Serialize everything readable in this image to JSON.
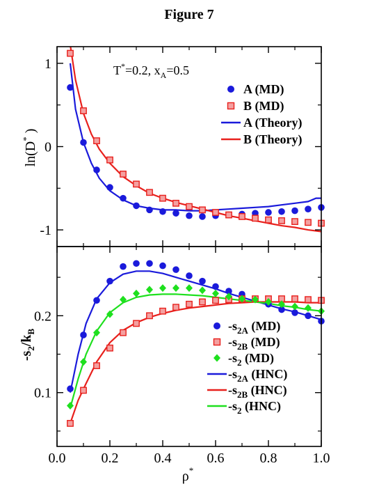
{
  "figure_title": "Figure 7",
  "x_axis": {
    "label": "ρ",
    "label_sup": "*",
    "ticks": [
      0.0,
      0.2,
      0.4,
      0.6,
      0.8,
      1.0
    ],
    "tick_labels": [
      "0.0",
      "0.2",
      "0.4",
      "0.6",
      "0.8",
      "1.0"
    ],
    "xlim": [
      0.0,
      1.0
    ]
  },
  "colors": {
    "blue": "#1a1adb",
    "red": "#e8201c",
    "green": "#1ee01e"
  },
  "chart_data": [
    {
      "type": "scatter+line",
      "panel": "top",
      "annotation": {
        "t_label": "T",
        "t_sup": "*",
        "t_value": "=0.2, x",
        "x_sub": "A",
        "x_value": "=0.5"
      },
      "ylabel": {
        "base": "ln(D",
        "sup": "*",
        "close": " )"
      },
      "ylim": [
        -1.2,
        1.2
      ],
      "yticks": [
        -1,
        0,
        1
      ],
      "ytick_labels": [
        "-1",
        "0",
        "1"
      ],
      "legend_position": "top-right",
      "series": [
        {
          "name": "A (MD)",
          "kind": "points",
          "marker": "circle",
          "color": "#1a1adb",
          "x": [
            0.05,
            0.1,
            0.15,
            0.2,
            0.25,
            0.3,
            0.35,
            0.4,
            0.45,
            0.5,
            0.55,
            0.6,
            0.65,
            0.7,
            0.75,
            0.8,
            0.85,
            0.9,
            0.95,
            1.0
          ],
          "y": [
            0.71,
            0.05,
            -0.28,
            -0.49,
            -0.62,
            -0.71,
            -0.76,
            -0.78,
            -0.8,
            -0.83,
            -0.84,
            -0.83,
            -0.82,
            -0.81,
            -0.8,
            -0.79,
            -0.78,
            -0.77,
            -0.75,
            -0.73
          ]
        },
        {
          "name": "B (MD)",
          "kind": "points",
          "marker": "square",
          "color": "#e8201c",
          "x": [
            0.05,
            0.1,
            0.15,
            0.2,
            0.25,
            0.3,
            0.35,
            0.4,
            0.45,
            0.5,
            0.55,
            0.6,
            0.65,
            0.7,
            0.75,
            0.8,
            0.85,
            0.9,
            0.95,
            1.0
          ],
          "y": [
            1.12,
            0.43,
            0.07,
            -0.16,
            -0.33,
            -0.45,
            -0.55,
            -0.62,
            -0.68,
            -0.72,
            -0.76,
            -0.79,
            -0.82,
            -0.84,
            -0.86,
            -0.88,
            -0.89,
            -0.9,
            -0.91,
            -0.92
          ]
        },
        {
          "name": "A (Theory)",
          "kind": "line",
          "color": "#1a1adb",
          "x": [
            0.05,
            0.07,
            0.1,
            0.13,
            0.16,
            0.2,
            0.25,
            0.3,
            0.35,
            0.4,
            0.45,
            0.5,
            0.55,
            0.6,
            0.65,
            0.7,
            0.75,
            0.8,
            0.85,
            0.9,
            0.95,
            0.98,
            1.0
          ],
          "y": [
            1.0,
            0.45,
            0.05,
            -0.2,
            -0.38,
            -0.53,
            -0.64,
            -0.71,
            -0.74,
            -0.76,
            -0.76,
            -0.77,
            -0.77,
            -0.76,
            -0.75,
            -0.74,
            -0.73,
            -0.72,
            -0.7,
            -0.68,
            -0.66,
            -0.62,
            -0.62
          ]
        },
        {
          "name": "B (Theory)",
          "kind": "line",
          "color": "#e8201c",
          "x": [
            0.05,
            0.07,
            0.1,
            0.13,
            0.16,
            0.2,
            0.25,
            0.3,
            0.35,
            0.4,
            0.45,
            0.5,
            0.55,
            0.6,
            0.65,
            0.7,
            0.75,
            0.8,
            0.85,
            0.9,
            0.95,
            1.0
          ],
          "y": [
            1.22,
            0.8,
            0.4,
            0.15,
            -0.03,
            -0.2,
            -0.36,
            -0.47,
            -0.56,
            -0.62,
            -0.67,
            -0.71,
            -0.75,
            -0.79,
            -0.83,
            -0.86,
            -0.89,
            -0.92,
            -0.95,
            -0.97,
            -1.0,
            -1.02
          ]
        }
      ]
    },
    {
      "type": "scatter+line",
      "panel": "bottom",
      "ylabel": {
        "base": "-s",
        "sub": "2",
        "mid": "/k",
        "sub2": "B"
      },
      "ylim": [
        0.03,
        0.29
      ],
      "yticks": [
        0.1,
        0.2
      ],
      "ytick_labels": [
        "0.1",
        "0.2"
      ],
      "legend_position": "bottom-right",
      "series": [
        {
          "name": "-s2A (MD)",
          "label_parts": [
            "-s",
            "2A",
            " (MD)"
          ],
          "kind": "points",
          "marker": "circle",
          "color": "#1a1adb",
          "x": [
            0.05,
            0.1,
            0.15,
            0.2,
            0.25,
            0.3,
            0.35,
            0.4,
            0.45,
            0.5,
            0.55,
            0.6,
            0.65,
            0.7,
            0.75,
            0.8,
            0.85,
            0.9,
            0.95,
            1.0
          ],
          "y": [
            0.105,
            0.175,
            0.22,
            0.245,
            0.264,
            0.268,
            0.268,
            0.265,
            0.26,
            0.252,
            0.245,
            0.238,
            0.232,
            0.228,
            0.222,
            0.215,
            0.208,
            0.204,
            0.2,
            0.193
          ]
        },
        {
          "name": "-s2B (MD)",
          "label_parts": [
            "-s",
            "2B",
            " (MD)"
          ],
          "kind": "points",
          "marker": "square",
          "color": "#e8201c",
          "x": [
            0.05,
            0.1,
            0.15,
            0.2,
            0.25,
            0.3,
            0.35,
            0.4,
            0.45,
            0.5,
            0.55,
            0.6,
            0.65,
            0.7,
            0.75,
            0.8,
            0.85,
            0.9,
            0.95,
            1.0
          ],
          "y": [
            0.06,
            0.103,
            0.135,
            0.158,
            0.178,
            0.19,
            0.2,
            0.206,
            0.211,
            0.215,
            0.218,
            0.22,
            0.221,
            0.222,
            0.222,
            0.222,
            0.222,
            0.222,
            0.221,
            0.22
          ]
        },
        {
          "name": "-s2 (MD)",
          "label_parts": [
            "-s",
            "2",
            " (MD)"
          ],
          "kind": "points",
          "marker": "diamond",
          "color": "#1ee01e",
          "x": [
            0.05,
            0.1,
            0.15,
            0.2,
            0.25,
            0.3,
            0.35,
            0.4,
            0.45,
            0.5,
            0.55,
            0.6,
            0.65,
            0.7,
            0.75,
            0.8,
            0.85,
            0.9,
            0.95,
            1.0
          ],
          "y": [
            0.083,
            0.14,
            0.178,
            0.202,
            0.221,
            0.229,
            0.234,
            0.236,
            0.236,
            0.236,
            0.233,
            0.229,
            0.225,
            0.222,
            0.221,
            0.218,
            0.215,
            0.212,
            0.21,
            0.206
          ]
        },
        {
          "name": "-s2A (HNC)",
          "label_parts": [
            "-s",
            "2A",
            " (HNC)"
          ],
          "kind": "line",
          "color": "#1a1adb",
          "x": [
            0.05,
            0.08,
            0.11,
            0.15,
            0.2,
            0.25,
            0.3,
            0.35,
            0.4,
            0.45,
            0.5,
            0.55,
            0.6,
            0.65,
            0.7,
            0.75,
            0.8,
            0.85,
            0.9,
            0.95,
            1.0
          ],
          "y": [
            0.1,
            0.15,
            0.19,
            0.222,
            0.243,
            0.254,
            0.258,
            0.258,
            0.255,
            0.25,
            0.245,
            0.24,
            0.235,
            0.229,
            0.224,
            0.219,
            0.214,
            0.209,
            0.205,
            0.2,
            0.195
          ]
        },
        {
          "name": "-s2B (HNC)",
          "label_parts": [
            "-s",
            "2B",
            " (HNC)"
          ],
          "kind": "line",
          "color": "#e8201c",
          "x": [
            0.05,
            0.08,
            0.11,
            0.15,
            0.2,
            0.25,
            0.3,
            0.35,
            0.4,
            0.45,
            0.5,
            0.55,
            0.6,
            0.65,
            0.7,
            0.75,
            0.8,
            0.85,
            0.9,
            0.95,
            1.0
          ],
          "y": [
            0.06,
            0.09,
            0.112,
            0.14,
            0.165,
            0.181,
            0.191,
            0.198,
            0.203,
            0.207,
            0.21,
            0.212,
            0.214,
            0.216,
            0.217,
            0.218,
            0.218,
            0.218,
            0.218,
            0.217,
            0.217
          ]
        },
        {
          "name": "-s2 (HNC)",
          "label_parts": [
            "-s",
            "2",
            " (HNC)"
          ],
          "kind": "line",
          "color": "#1ee01e",
          "x": [
            0.05,
            0.08,
            0.11,
            0.15,
            0.2,
            0.25,
            0.3,
            0.35,
            0.4,
            0.45,
            0.5,
            0.55,
            0.6,
            0.65,
            0.7,
            0.75,
            0.8,
            0.85,
            0.9,
            0.95,
            1.0
          ],
          "y": [
            0.08,
            0.118,
            0.15,
            0.18,
            0.204,
            0.217,
            0.224,
            0.227,
            0.228,
            0.228,
            0.227,
            0.226,
            0.224,
            0.222,
            0.22,
            0.218,
            0.216,
            0.213,
            0.211,
            0.208,
            0.206
          ]
        }
      ]
    }
  ]
}
